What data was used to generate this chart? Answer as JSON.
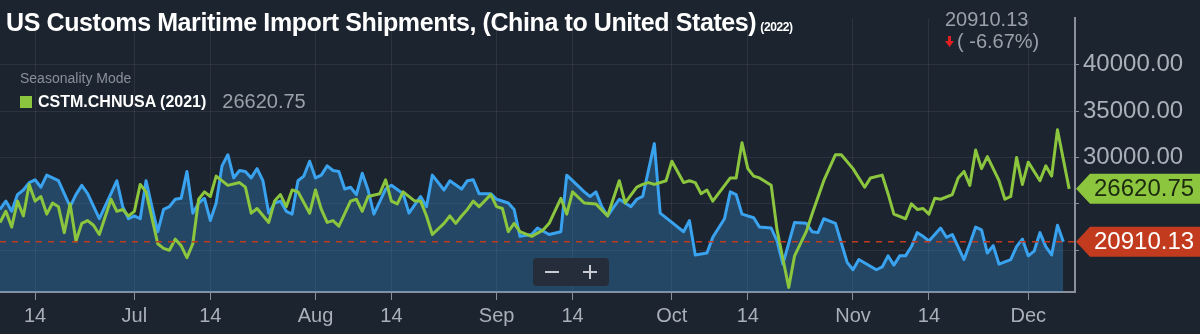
{
  "chart_data": {
    "type": "line",
    "title": "US Customs Maritime Import Shipments, (China to United States)",
    "subtitle": "(2022)",
    "legend_title": "Seasonality Mode",
    "legend": "top left",
    "grid": true,
    "xlim": [
      "--06-08",
      "--12-09"
    ],
    "xticks": [
      {
        "value": "--06-14",
        "label": "14"
      },
      {
        "value": "--07-01",
        "label": "Jul"
      },
      {
        "value": "--07-14",
        "label": "14"
      },
      {
        "value": "--08-01",
        "label": "Aug"
      },
      {
        "value": "--08-14",
        "label": "14"
      },
      {
        "value": "--09-01",
        "label": "Sep"
      },
      {
        "value": "--09-14",
        "label": "14"
      },
      {
        "value": "--10-01",
        "label": "Oct"
      },
      {
        "value": "--10-14",
        "label": "14"
      },
      {
        "value": "--11-01",
        "label": "Nov"
      },
      {
        "value": "--11-14",
        "label": "14"
      },
      {
        "value": "--12-01",
        "label": "Dec"
      }
    ],
    "ylim": [
      15500,
      45000
    ],
    "yticks": [
      {
        "value": 20000,
        "label": null
      },
      {
        "value": 25000,
        "label": null
      },
      {
        "value": 30000,
        "label": "30000.00"
      },
      {
        "value": 35000,
        "label": "35000.00"
      },
      {
        "value": 40000,
        "label": "40000.00"
      }
    ],
    "ref_lines": [
      {
        "axis": "y",
        "value": 20910.13,
        "label": "20910.13",
        "color": "#c23b1e",
        "line_style": "dashed"
      }
    ],
    "annotations": [
      "20910.13",
      "( -6.67%)",
      "26620.75",
      {
        "text": "26620.75",
        "x": "--12-08",
        "y": 26620.75
      }
    ],
    "series": [
      {
        "type": "area",
        "color": "#3aa3f0",
        "x": [
          "--06-08",
          "--06-09",
          "--06-10",
          "--06-11",
          "--06-12",
          "--06-13",
          "--06-14",
          "--06-15",
          "--06-16",
          "--06-18",
          "--06-19",
          "--06-20",
          "--06-21",
          "--06-22",
          "--06-23",
          "--06-25",
          "--06-27",
          "--06-28",
          "--06-29",
          "--06-30",
          "--07-01",
          "--07-02",
          "--07-03",
          "--07-04",
          "--07-05",
          "--07-06",
          "--07-07",
          "--07-08",
          "--07-09",
          "--07-10",
          "--07-11",
          "--07-12",
          "--07-13",
          "--07-14",
          "--07-15",
          "--07-16",
          "--07-17",
          "--07-18",
          "--07-19",
          "--07-20",
          "--07-21",
          "--07-22",
          "--07-23",
          "--07-24",
          "--07-25",
          "--07-26",
          "--07-27",
          "--07-28",
          "--07-29",
          "--07-30",
          "--07-31",
          "--08-01",
          "--08-02",
          "--08-03",
          "--08-04",
          "--08-05",
          "--08-06",
          "--08-07",
          "--08-08",
          "--08-09",
          "--08-10",
          "--08-11",
          "--08-13",
          "--08-14",
          "--08-16",
          "--08-17",
          "--08-19",
          "--08-20",
          "--08-21",
          "--08-23",
          "--08-24",
          "--08-26",
          "--08-27",
          "--08-28",
          "--08-29",
          "--08-31",
          "--09-01",
          "--09-03",
          "--09-04",
          "--09-05",
          "--09-07",
          "--09-08",
          "--09-10",
          "--09-12",
          "--09-13",
          "--09-14",
          "--09-16",
          "--09-17",
          "--09-18",
          "--09-19",
          "--09-20",
          "--09-22",
          "--09-23",
          "--09-24",
          "--09-25",
          "--09-26",
          "--09-28",
          "--09-29",
          "--10-01",
          "--10-03",
          "--10-04",
          "--10-05",
          "--10-07",
          "--10-08",
          "--10-10",
          "--10-11",
          "--10-12",
          "--10-13",
          "--10-15",
          "--10-16",
          "--10-18",
          "--10-19",
          "--10-20",
          "--10-22",
          "--10-24",
          "--10-25",
          "--10-26",
          "--10-27",
          "--10-29",
          "--10-31",
          "--11-01",
          "--11-02",
          "--11-05",
          "--11-06",
          "--11-07",
          "--11-08",
          "--11-09",
          "--11-10",
          "--11-11",
          "--11-12",
          "--11-13",
          "--11-14",
          "--11-16",
          "--11-17",
          "--11-18",
          "--11-20",
          "--11-21",
          "--11-22",
          "--11-23",
          "--11-24",
          "--11-25",
          "--11-26",
          "--11-28",
          "--11-29",
          "--11-30",
          "--12-01",
          "--12-02",
          "--12-03",
          "--12-04",
          "--12-05",
          "--12-06",
          "--12-07"
        ],
        "values": [
          24400,
          25300,
          24200,
          26000,
          26500,
          27300,
          27600,
          26800,
          28100,
          27500,
          26100,
          24700,
          26000,
          27000,
          26100,
          23400,
          26100,
          27500,
          24700,
          23400,
          23700,
          23400,
          27500,
          24700,
          22000,
          24400,
          24700,
          25500,
          25600,
          28500,
          24000,
          25100,
          25600,
          23200,
          25100,
          29100,
          30300,
          27800,
          28600,
          28500,
          27800,
          28800,
          27500,
          24000,
          25100,
          25300,
          24200,
          23900,
          27500,
          28000,
          29600,
          27800,
          28100,
          29100,
          28600,
          28500,
          26600,
          26800,
          26000,
          28300,
          26500,
          23900,
          26600,
          27000,
          26100,
          24000,
          25800,
          24700,
          28100,
          26500,
          27500,
          26600,
          27500,
          27600,
          26100,
          26100,
          25500,
          25100,
          24400,
          21500,
          21700,
          22400,
          21700,
          22000,
          28100,
          27500,
          26300,
          25800,
          26300,
          24700,
          23700,
          25500,
          25100,
          24700,
          25500,
          25800,
          31500,
          24000,
          23000,
          22000,
          23200,
          19500,
          19700,
          21400,
          23400,
          26300,
          26000,
          23900,
          23500,
          22500,
          22400,
          21000,
          18500,
          23000,
          22900,
          22000,
          21900,
          23400,
          22900,
          18700,
          17900,
          19000,
          17900,
          18200,
          19400,
          18400,
          19400,
          19400,
          20400,
          21900,
          21500,
          21000,
          22400,
          21400,
          21700,
          19000,
          20700,
          22500,
          22200,
          19700,
          20500,
          18500,
          19000,
          20400,
          21200,
          19400,
          19900,
          21900,
          20400,
          19500,
          22700,
          20910.13
        ]
      },
      {
        "name": "CSTM.CHNUSA (2021)",
        "color": "#8cc63e",
        "x": [
          "--06-08",
          "--06-09",
          "--06-10",
          "--06-11",
          "--06-12",
          "--06-13",
          "--06-14",
          "--06-15",
          "--06-16",
          "--06-17",
          "--06-18",
          "--06-19",
          "--06-20",
          "--06-21",
          "--06-22",
          "--06-23",
          "--06-24",
          "--06-25",
          "--06-27",
          "--06-28",
          "--06-29",
          "--06-30",
          "--07-01",
          "--07-02",
          "--07-03",
          "--07-05",
          "--07-06",
          "--07-07",
          "--07-08",
          "--07-09",
          "--07-10",
          "--07-11",
          "--07-12",
          "--07-13",
          "--07-14",
          "--07-15",
          "--07-17",
          "--07-19",
          "--07-20",
          "--07-21",
          "--07-22",
          "--07-24",
          "--07-25",
          "--07-26",
          "--07-27",
          "--07-28",
          "--07-29",
          "--07-31",
          "--08-01",
          "--08-02",
          "--08-03",
          "--08-04",
          "--08-05",
          "--08-07",
          "--08-08",
          "--08-09",
          "--08-10",
          "--08-12",
          "--08-13",
          "--08-14",
          "--08-15",
          "--08-16",
          "--08-18",
          "--08-19",
          "--08-20",
          "--08-21",
          "--08-23",
          "--08-24",
          "--08-25",
          "--08-26",
          "--08-27",
          "--08-28",
          "--08-29",
          "--08-31",
          "--09-01",
          "--09-02",
          "--09-03",
          "--09-04",
          "--09-05",
          "--09-07",
          "--09-09",
          "--09-10",
          "--09-12",
          "--09-13",
          "--09-14",
          "--09-16",
          "--09-18",
          "--09-20",
          "--09-22",
          "--09-23",
          "--09-25",
          "--09-26",
          "--09-27",
          "--09-28",
          "--09-30",
          "--10-01",
          "--10-03",
          "--10-04",
          "--10-05",
          "--10-06",
          "--10-07",
          "--10-08",
          "--10-11",
          "--10-12",
          "--10-13",
          "--10-14",
          "--10-15",
          "--10-16",
          "--10-18",
          "--10-19",
          "--10-21",
          "--10-22",
          "--10-24",
          "--10-25",
          "--10-27",
          "--10-29",
          "--10-30",
          "--11-01",
          "--11-03",
          "--11-04",
          "--11-06",
          "--11-07",
          "--11-08",
          "--11-10",
          "--11-11",
          "--11-12",
          "--11-13",
          "--11-14",
          "--11-15",
          "--11-16",
          "--11-18",
          "--11-19",
          "--11-20",
          "--11-21",
          "--11-22",
          "--11-23",
          "--11-24",
          "--11-26",
          "--11-27",
          "--11-28",
          "--11-29",
          "--11-30",
          "--12-01",
          "--12-03",
          "--12-04",
          "--12-05",
          "--12-06",
          "--12-07",
          "--12-08"
        ],
        "values": [
          23000,
          24200,
          22500,
          25300,
          23700,
          27100,
          25300,
          25800,
          23900,
          25100,
          24700,
          21900,
          25000,
          21000,
          22900,
          23200,
          22700,
          21700,
          25500,
          24200,
          24400,
          23700,
          24200,
          27100,
          26300,
          20700,
          20200,
          20000,
          21200,
          20500,
          19200,
          20700,
          25500,
          26300,
          25800,
          28000,
          27000,
          27300,
          26800,
          24000,
          24500,
          23000,
          25300,
          26000,
          24700,
          26500,
          26300,
          24000,
          26500,
          24400,
          23000,
          23200,
          22600,
          25300,
          25500,
          24200,
          25800,
          26100,
          27600,
          25300,
          25000,
          26300,
          25300,
          25300,
          23700,
          21700,
          22900,
          23700,
          22900,
          23700,
          24400,
          25300,
          24700,
          26000,
          24700,
          24500,
          22000,
          22900,
          22000,
          21500,
          22200,
          22900,
          25600,
          23900,
          26300,
          25100,
          25000,
          23700,
          27500,
          25100,
          26800,
          27100,
          27300,
          27100,
          27500,
          29600,
          27300,
          27500,
          27300,
          26100,
          26500,
          25300,
          27800,
          27800,
          31600,
          28800,
          28000,
          27800,
          27000,
          22200,
          16000,
          19400,
          22000,
          23900,
          27500,
          30300,
          30300,
          28800,
          26800,
          27800,
          28100,
          26100,
          23900,
          23400,
          25000,
          24400,
          24500,
          23900,
          25600,
          25500,
          26000,
          27800,
          28500,
          27000,
          30800,
          28800,
          30100,
          27500,
          25500,
          25800,
          30000,
          27100,
          29500,
          27500,
          29100,
          28000,
          33000,
          29800,
          26620.75
        ]
      }
    ]
  }
}
